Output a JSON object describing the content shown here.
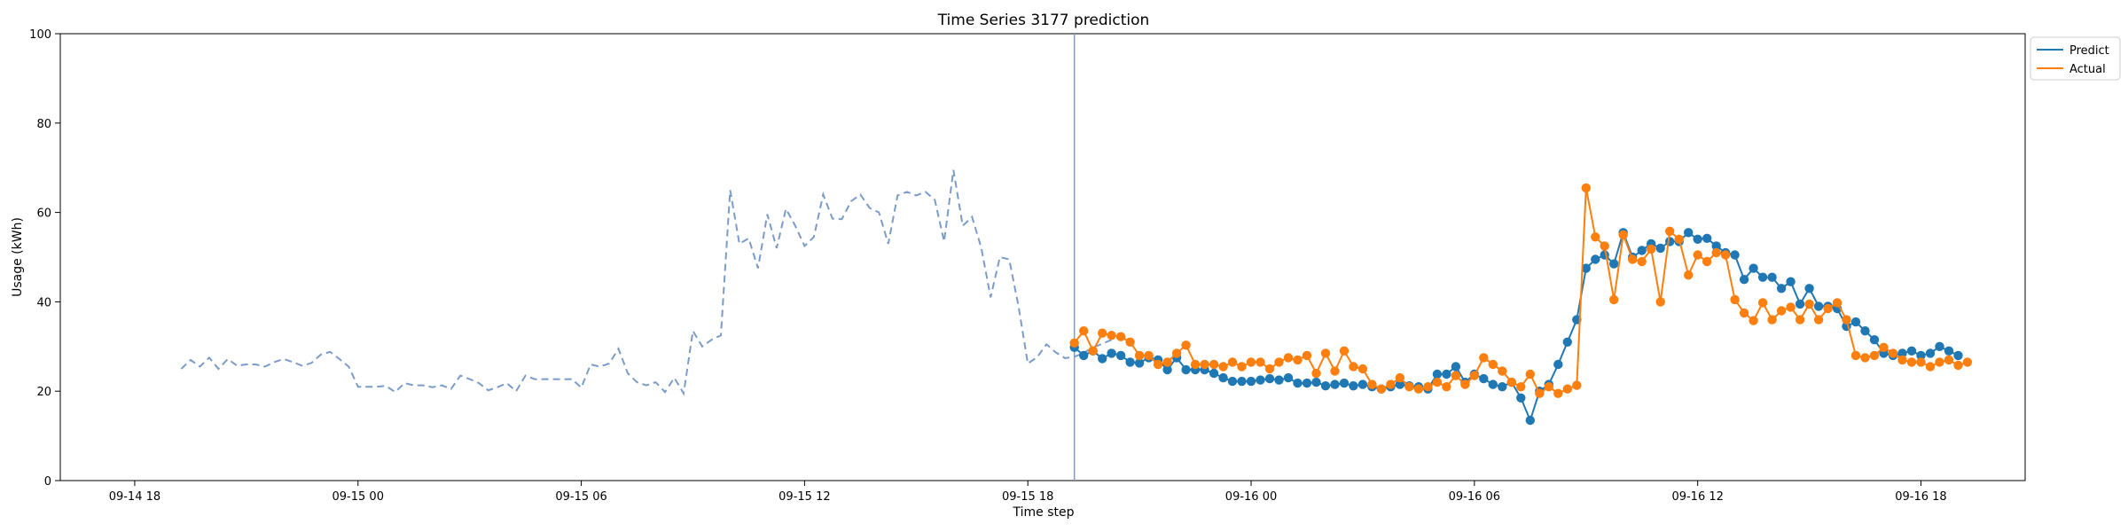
{
  "chart_data": {
    "type": "line",
    "title": "Time Series 3177 prediction",
    "xlabel": "Time step",
    "ylabel": "Usage (kWh)",
    "ylim": [
      0,
      100
    ],
    "xlim": [
      "2021-09-14 16:00",
      "2021-09-16 20:48"
    ],
    "yticks": [
      0,
      20,
      40,
      60,
      80,
      100
    ],
    "xticks": [
      {
        "t": "2021-09-14 18:00",
        "label": "09-14 18"
      },
      {
        "t": "2021-09-15 00:00",
        "label": "09-15 00"
      },
      {
        "t": "2021-09-15 06:00",
        "label": "09-15 06"
      },
      {
        "t": "2021-09-15 12:00",
        "label": "09-15 12"
      },
      {
        "t": "2021-09-15 18:00",
        "label": "09-15 18"
      },
      {
        "t": "2021-09-16 00:00",
        "label": "09-16 00"
      },
      {
        "t": "2021-09-16 06:00",
        "label": "09-16 06"
      },
      {
        "t": "2021-09-16 12:00",
        "label": "09-16 12"
      },
      {
        "t": "2021-09-16 18:00",
        "label": "09-16 18"
      }
    ],
    "grid": false,
    "legend_position": "outside top-right",
    "forecast_start": "2021-09-15 19:15",
    "colors": {
      "history": "#7b9cc9",
      "predict": "#1f77b4",
      "actual": "#ff7f0e",
      "vline": "#7b9cc9"
    },
    "interval_minutes": 15,
    "history": {
      "name": "",
      "start": "2021-09-14 19:15",
      "values": [
        25.0,
        27.0,
        25.5,
        27.5,
        25.0,
        27.2,
        25.7,
        26.0,
        26.0,
        25.5,
        26.5,
        27.2,
        26.5,
        25.7,
        26.3,
        28.2,
        28.8,
        27.2,
        25.5,
        21.0,
        21.0,
        21.0,
        21.2,
        19.8,
        21.8,
        21.3,
        21.3,
        20.9,
        21.3,
        20.5,
        23.5,
        22.7,
        21.8,
        20.2,
        20.9,
        21.8,
        20.0,
        23.5,
        22.7,
        22.7,
        22.7,
        22.7,
        22.7,
        20.8,
        26.0,
        25.5,
        26.2,
        29.5,
        24.0,
        22.0,
        21.3,
        22.0,
        19.8,
        23.0,
        19.5,
        33.5,
        30.0,
        31.5,
        32.5,
        65.0,
        53.0,
        54.2,
        47.5,
        59.6,
        52.0,
        60.8,
        57.0,
        52.5,
        54.5,
        64.0,
        58.6,
        58.5,
        62.5,
        64.0,
        61.0,
        60.0,
        53.0,
        63.8,
        64.6,
        63.8,
        64.6,
        62.8,
        53.5,
        69.5,
        57.0,
        59.0,
        52.0,
        41.0,
        50.0,
        49.5,
        39.0,
        26.2,
        27.6,
        30.5,
        28.7,
        27.4,
        27.7,
        28.6,
        29.8,
        30.6,
        31.5
      ]
    },
    "series": [
      {
        "name": "Predict",
        "start": "2021-09-15 19:15",
        "values": [
          29.8,
          28.0,
          29.0,
          27.3,
          28.5,
          28.0,
          26.5,
          26.3,
          27.5,
          27.0,
          24.8,
          27.5,
          24.8,
          24.8,
          24.8,
          24.0,
          23.0,
          22.2,
          22.2,
          22.2,
          22.5,
          22.8,
          22.5,
          23.0,
          21.8,
          21.8,
          22.0,
          21.2,
          21.5,
          21.8,
          21.2,
          21.5,
          21.0,
          20.5,
          21.0,
          21.5,
          21.2,
          21.0,
          20.5,
          23.8,
          23.8,
          25.5,
          22.0,
          23.8,
          22.8,
          21.5,
          21.0,
          22.0,
          18.5,
          13.5,
          20.0,
          21.5,
          26.0,
          31.0,
          36.0,
          47.5,
          49.5,
          50.5,
          48.5,
          55.5,
          50.0,
          51.5,
          53.0,
          52.0,
          53.5,
          53.5,
          55.5,
          54.0,
          54.2,
          52.5,
          51.0,
          50.5,
          45.0,
          47.5,
          45.5,
          45.5,
          43.0,
          44.5,
          39.5,
          43.0,
          39.0,
          39.0,
          38.5,
          34.5,
          35.5,
          33.5,
          31.5,
          28.5,
          28.0,
          28.5,
          29.0,
          28.0,
          28.5,
          30.0,
          29.0,
          28.0
        ]
      },
      {
        "name": "Actual",
        "start": "2021-09-15 19:15",
        "values": [
          30.8,
          33.5,
          29.0,
          33.0,
          32.5,
          32.2,
          31.0,
          28.0,
          28.0,
          26.0,
          26.5,
          28.5,
          30.3,
          26.0,
          26.0,
          26.0,
          25.5,
          26.5,
          25.5,
          26.5,
          26.5,
          25.0,
          26.5,
          27.5,
          27.0,
          28.0,
          24.0,
          28.5,
          24.5,
          29.0,
          25.5,
          25.0,
          21.5,
          20.5,
          21.5,
          23.0,
          21.0,
          20.5,
          21.0,
          22.0,
          21.0,
          23.5,
          21.5,
          23.5,
          27.5,
          26.0,
          24.5,
          22.0,
          21.0,
          23.8,
          19.5,
          21.0,
          19.5,
          20.5,
          21.3,
          65.5,
          54.5,
          52.5,
          40.5,
          55.0,
          49.5,
          49.0,
          51.8,
          40.0,
          55.8,
          54.0,
          46.0,
          50.5,
          49.0,
          51.0,
          50.5,
          40.5,
          37.5,
          35.8,
          39.8,
          36.0,
          38.0,
          38.8,
          36.0,
          39.5,
          36.0,
          38.5,
          39.8,
          36.0,
          28.0,
          27.5,
          28.0,
          29.8,
          28.5,
          27.0,
          26.5,
          26.5,
          25.5,
          26.5,
          27.0,
          25.8,
          26.5
        ]
      }
    ]
  }
}
